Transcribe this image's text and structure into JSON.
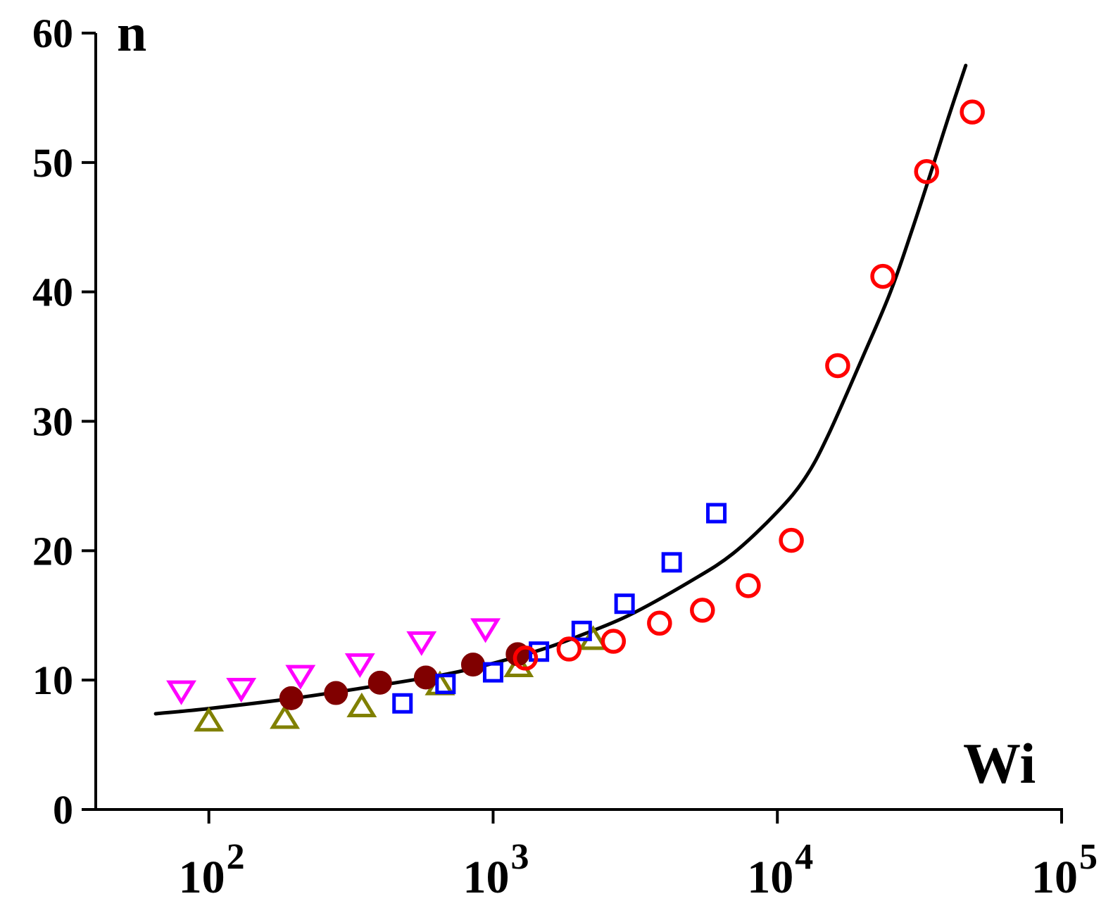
{
  "chart_data": {
    "type": "scatter",
    "title": "",
    "xlabel": "Wi",
    "ylabel": "n",
    "xscale": "log",
    "xlim": [
      40,
      100000
    ],
    "ylim": [
      0,
      60
    ],
    "grid": false,
    "legend": "none",
    "yticks": [
      {
        "value": 0,
        "label": "0"
      },
      {
        "value": 10,
        "label": "10"
      },
      {
        "value": 20,
        "label": "20"
      },
      {
        "value": 30,
        "label": "30"
      },
      {
        "value": 40,
        "label": "40"
      },
      {
        "value": 50,
        "label": "50"
      },
      {
        "value": 60,
        "label": "60"
      }
    ],
    "xticks": [
      {
        "value": 100,
        "base": "10",
        "exp": "2"
      },
      {
        "value": 1000,
        "base": "10",
        "exp": "3"
      },
      {
        "value": 10000,
        "base": "10",
        "exp": "4"
      },
      {
        "value": 100000,
        "base": "10",
        "exp": "5"
      }
    ],
    "series": [
      {
        "name": "magenta-down-triangles",
        "marker": "triangle-down",
        "color": "#ff00ff",
        "filled": false,
        "points": [
          [
            80,
            9.2
          ],
          [
            130,
            9.4
          ],
          [
            210,
            10.4
          ],
          [
            340,
            11.3
          ],
          [
            560,
            13.0
          ],
          [
            940,
            14.0
          ]
        ]
      },
      {
        "name": "olive-up-triangles",
        "marker": "triangle-up",
        "color": "#808000",
        "filled": false,
        "points": [
          [
            100,
            6.8
          ],
          [
            185,
            7.0
          ],
          [
            345,
            7.9
          ],
          [
            650,
            9.6
          ],
          [
            1230,
            11.0
          ],
          [
            2250,
            13.1
          ]
        ]
      },
      {
        "name": "maroon-filled-circles",
        "marker": "circle",
        "color": "#800000",
        "filled": true,
        "points": [
          [
            195,
            8.6
          ],
          [
            280,
            9.0
          ],
          [
            400,
            9.8
          ],
          [
            580,
            10.2
          ],
          [
            850,
            11.2
          ],
          [
            1220,
            12.0
          ]
        ]
      },
      {
        "name": "blue-squares",
        "marker": "square",
        "color": "#0000ff",
        "filled": false,
        "points": [
          [
            480,
            8.2
          ],
          [
            680,
            9.7
          ],
          [
            1000,
            10.6
          ],
          [
            1450,
            12.2
          ],
          [
            2050,
            13.8
          ],
          [
            2900,
            15.9
          ],
          [
            4250,
            19.1
          ],
          [
            6100,
            22.9
          ]
        ]
      },
      {
        "name": "red-open-circles",
        "marker": "circle",
        "color": "#ff0000",
        "filled": false,
        "points": [
          [
            1300,
            11.7
          ],
          [
            1850,
            12.4
          ],
          [
            2650,
            13.0
          ],
          [
            3850,
            14.4
          ],
          [
            5450,
            15.4
          ],
          [
            7900,
            17.3
          ],
          [
            11200,
            20.8
          ],
          [
            16300,
            34.3
          ],
          [
            23500,
            41.2
          ],
          [
            33500,
            49.3
          ],
          [
            48500,
            53.9
          ]
        ]
      }
    ],
    "fit_line": {
      "name": "fit-curve",
      "color": "#000000",
      "points": [
        [
          65,
          7.4
        ],
        [
          100,
          7.8
        ],
        [
          200,
          8.6
        ],
        [
          400,
          9.6
        ],
        [
          700,
          10.5
        ],
        [
          1000,
          11.3
        ],
        [
          1500,
          12.4
        ],
        [
          2000,
          13.4
        ],
        [
          3000,
          15.0
        ],
        [
          5000,
          17.7
        ],
        [
          7000,
          19.8
        ],
        [
          10000,
          23.0
        ],
        [
          12500,
          25.6
        ],
        [
          15000,
          28.8
        ],
        [
          20000,
          35.0
        ],
        [
          25000,
          40.0
        ],
        [
          30000,
          45.0
        ],
        [
          35000,
          49.5
        ],
        [
          40000,
          53.5
        ],
        [
          46000,
          57.5
        ]
      ]
    }
  }
}
